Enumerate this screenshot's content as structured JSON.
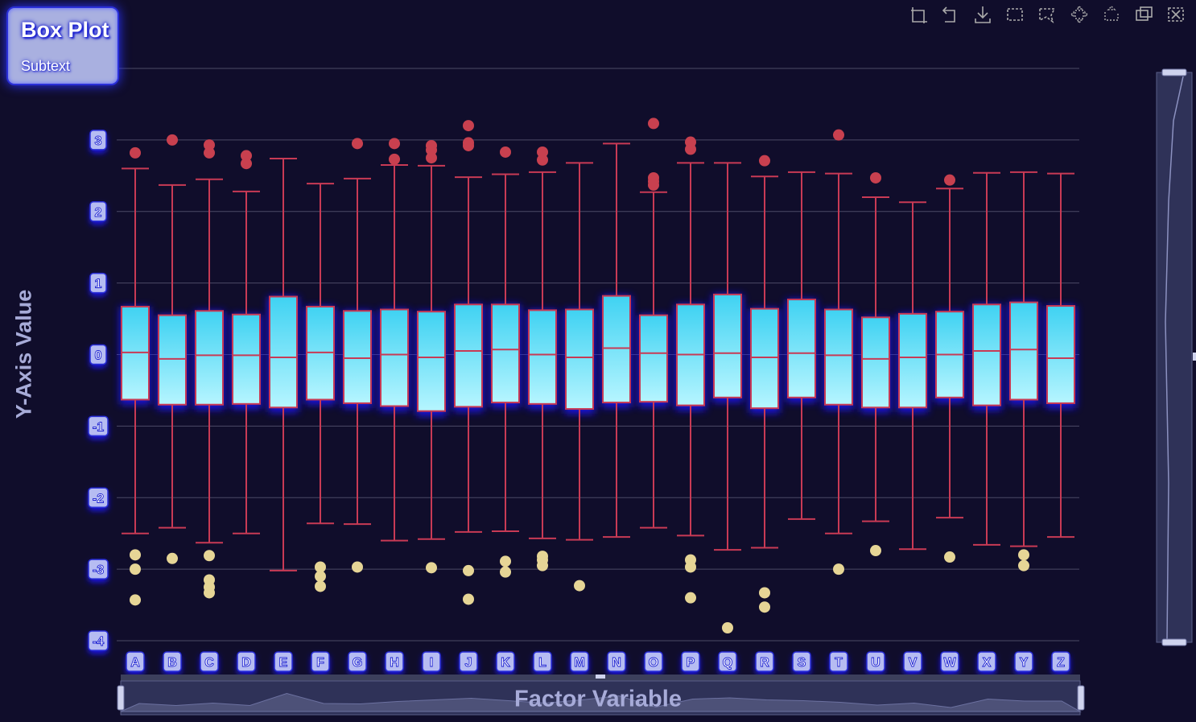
{
  "title": {
    "text": "Box Plot",
    "subtext": "Subtext"
  },
  "toolbar": {
    "tools": [
      "zoom-icon",
      "zoom-reset-icon",
      "download-icon",
      "rect-select-icon",
      "lasso-select-icon",
      "pan-icon",
      "zoom-in-icon",
      "restore-icon",
      "fullscreen-icon"
    ]
  },
  "colors": {
    "background": "#100d2b",
    "box_fill_top": "#3fd2f2",
    "box_fill_bottom": "#b6f5ff",
    "box_stroke": "#c83a55",
    "outlier_high": "#c8404f",
    "outlier_low": "#e6d596",
    "label_fill": "#b6bcf2",
    "glow": "#1a17f5"
  },
  "chart_data": {
    "type": "boxplot",
    "title": "Box Plot",
    "subtitle": "Subtext",
    "xlabel": "Factor Variable",
    "ylabel": "Y-Axis Value",
    "ylim": [
      -4,
      4
    ],
    "yticks": [
      3,
      2,
      1,
      0,
      -1,
      -2,
      -3,
      -4
    ],
    "grid": true,
    "categories": [
      "A",
      "B",
      "C",
      "D",
      "E",
      "F",
      "G",
      "H",
      "I",
      "J",
      "K",
      "L",
      "M",
      "N",
      "O",
      "P",
      "Q",
      "R",
      "S",
      "T",
      "U",
      "V",
      "W",
      "X",
      "Y",
      "Z"
    ],
    "boxes": [
      {
        "min": -2.5,
        "q1": -0.63,
        "median": 0.03,
        "q3": 0.67,
        "max": 2.6
      },
      {
        "min": -2.42,
        "q1": -0.7,
        "median": -0.06,
        "q3": 0.55,
        "max": 2.37
      },
      {
        "min": -2.63,
        "q1": -0.7,
        "median": -0.01,
        "q3": 0.61,
        "max": 2.45
      },
      {
        "min": -2.5,
        "q1": -0.69,
        "median": -0.01,
        "q3": 0.56,
        "max": 2.28
      },
      {
        "min": -3.02,
        "q1": -0.74,
        "median": -0.04,
        "q3": 0.81,
        "max": 2.74
      },
      {
        "min": -2.36,
        "q1": -0.63,
        "median": 0.03,
        "q3": 0.67,
        "max": 2.39
      },
      {
        "min": -2.37,
        "q1": -0.68,
        "median": -0.05,
        "q3": 0.61,
        "max": 2.46
      },
      {
        "min": -2.6,
        "q1": -0.72,
        "median": 0.0,
        "q3": 0.63,
        "max": 2.65
      },
      {
        "min": -2.58,
        "q1": -0.79,
        "median": -0.04,
        "q3": 0.6,
        "max": 2.64
      },
      {
        "min": -2.48,
        "q1": -0.73,
        "median": 0.05,
        "q3": 0.7,
        "max": 2.48
      },
      {
        "min": -2.47,
        "q1": -0.67,
        "median": 0.07,
        "q3": 0.7,
        "max": 2.52
      },
      {
        "min": -2.57,
        "q1": -0.69,
        "median": 0.0,
        "q3": 0.62,
        "max": 2.55
      },
      {
        "min": -2.59,
        "q1": -0.76,
        "median": -0.04,
        "q3": 0.63,
        "max": 2.68
      },
      {
        "min": -2.55,
        "q1": -0.67,
        "median": 0.09,
        "q3": 0.82,
        "max": 2.95
      },
      {
        "min": -2.42,
        "q1": -0.66,
        "median": 0.02,
        "q3": 0.55,
        "max": 2.27
      },
      {
        "min": -2.53,
        "q1": -0.71,
        "median": 0.0,
        "q3": 0.7,
        "max": 2.68
      },
      {
        "min": -2.73,
        "q1": -0.6,
        "median": 0.02,
        "q3": 0.84,
        "max": 2.68
      },
      {
        "min": -2.7,
        "q1": -0.75,
        "median": -0.04,
        "q3": 0.64,
        "max": 2.49
      },
      {
        "min": -2.3,
        "q1": -0.6,
        "median": 0.02,
        "q3": 0.77,
        "max": 2.55
      },
      {
        "min": -2.5,
        "q1": -0.7,
        "median": -0.01,
        "q3": 0.63,
        "max": 2.53
      },
      {
        "min": -2.33,
        "q1": -0.74,
        "median": -0.06,
        "q3": 0.52,
        "max": 2.2
      },
      {
        "min": -2.72,
        "q1": -0.74,
        "median": -0.04,
        "q3": 0.57,
        "max": 2.13
      },
      {
        "min": -2.28,
        "q1": -0.6,
        "median": 0.0,
        "q3": 0.6,
        "max": 2.32
      },
      {
        "min": -2.66,
        "q1": -0.71,
        "median": 0.05,
        "q3": 0.7,
        "max": 2.54
      },
      {
        "min": -2.68,
        "q1": -0.63,
        "median": 0.07,
        "q3": 0.73,
        "max": 2.55
      },
      {
        "min": -2.55,
        "q1": -0.68,
        "median": -0.05,
        "q3": 0.68,
        "max": 2.53
      }
    ],
    "outliers": [
      {
        "category": "A",
        "values": [
          2.82,
          -2.8,
          -3.0,
          -3.43
        ]
      },
      {
        "category": "B",
        "values": [
          3.0,
          -2.85
        ]
      },
      {
        "category": "C",
        "values": [
          2.93,
          2.82,
          -2.81,
          -3.15,
          -3.25,
          -3.33
        ]
      },
      {
        "category": "D",
        "values": [
          2.78,
          2.67
        ]
      },
      {
        "category": "F",
        "values": [
          -2.97,
          -3.1,
          -3.24
        ]
      },
      {
        "category": "G",
        "values": [
          2.95,
          -2.97
        ]
      },
      {
        "category": "H",
        "values": [
          2.95,
          2.73
        ]
      },
      {
        "category": "I",
        "values": [
          2.92,
          2.86,
          2.75,
          -2.98
        ]
      },
      {
        "category": "J",
        "values": [
          3.2,
          2.96,
          2.92,
          -3.02,
          -3.42
        ]
      },
      {
        "category": "K",
        "values": [
          2.83,
          -2.89,
          -3.04
        ]
      },
      {
        "category": "L",
        "values": [
          2.83,
          2.72,
          -2.82,
          -2.87,
          -2.95
        ]
      },
      {
        "category": "M",
        "values": [
          -3.23
        ]
      },
      {
        "category": "O",
        "values": [
          3.23,
          2.47,
          2.42,
          2.37
        ]
      },
      {
        "category": "P",
        "values": [
          2.97,
          2.87,
          -2.87,
          -2.97,
          -3.4
        ]
      },
      {
        "category": "Q",
        "values": [
          -3.82
        ]
      },
      {
        "category": "R",
        "values": [
          2.71,
          -3.33,
          -3.53
        ]
      },
      {
        "category": "T",
        "values": [
          3.07,
          -3.0
        ]
      },
      {
        "category": "U",
        "values": [
          2.47,
          -2.74
        ]
      },
      {
        "category": "W",
        "values": [
          2.44,
          -2.83
        ]
      },
      {
        "category": "Y",
        "values": [
          -2.8,
          -2.95
        ]
      }
    ]
  }
}
